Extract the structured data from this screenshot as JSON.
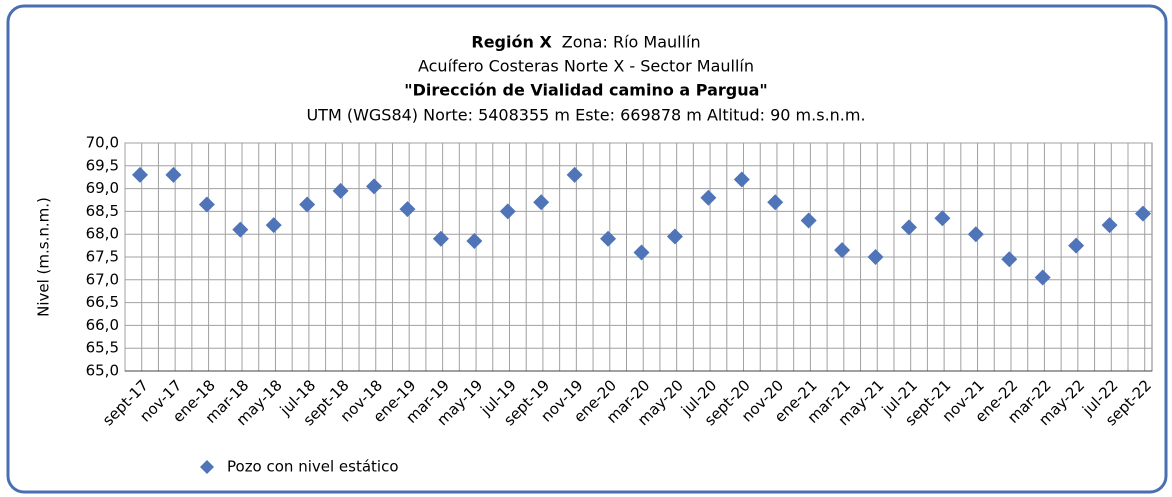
{
  "chart_data": {
    "type": "scatter",
    "title": "Región X",
    "title_detail": "Zona: Río Maullín",
    "subtitle": "Acuífero Costeras Norte X - Sector Maullín",
    "well_name": "\"Dirección de Vialidad camino a Pargua\"",
    "location": "UTM (WGS84) Norte: 5408355 m Este: 669878 m  Altitud: 90 m.s.n.m.",
    "y_label": "Nivel (m.s.n.m.)",
    "categories": [
      "sept-17",
      "nov-17",
      "ene-18",
      "mar-18",
      "may-18",
      "jul-18",
      "sept-18",
      "nov-18",
      "ene-19",
      "mar-19",
      "may-19",
      "jul-19",
      "sept-19",
      "nov-19",
      "ene-20",
      "mar-20",
      "may-20",
      "jul-20",
      "sept-20",
      "nov-20",
      "ene-21",
      "mar-21",
      "may-21",
      "jul-21",
      "sept-21",
      "nov-21",
      "ene-22",
      "mar-22",
      "may-22",
      "jul-22",
      "sept-22"
    ],
    "series": [
      {
        "name": "Pozo con nivel estático",
        "color": "#4f74b8",
        "values": [
          69.3,
          69.3,
          68.65,
          68.1,
          68.2,
          68.65,
          68.95,
          69.05,
          68.55,
          67.9,
          67.85,
          68.5,
          68.7,
          69.3,
          67.9,
          67.6,
          67.95,
          68.8,
          69.2,
          68.7,
          68.3,
          67.65,
          67.5,
          68.15,
          68.35,
          68.0,
          67.45,
          67.05,
          67.75,
          68.2,
          68.45
        ]
      }
    ],
    "ylim": [
      65,
      70
    ],
    "yticks": [
      {
        "value": 65,
        "label": "65,0"
      },
      {
        "value": 65.5,
        "label": "65,5"
      },
      {
        "value": 66,
        "label": "66,0"
      },
      {
        "value": 66.5,
        "label": "66,5"
      },
      {
        "value": 67,
        "label": "67,0"
      },
      {
        "value": 67.5,
        "label": "67,5"
      },
      {
        "value": 68,
        "label": "68,0"
      },
      {
        "value": 68.5,
        "label": "68,5"
      },
      {
        "value": 69,
        "label": "69,0"
      },
      {
        "value": 69.5,
        "label": "69,5"
      },
      {
        "value": 70,
        "label": "70,0"
      }
    ],
    "grid": true,
    "legend": "bottom-left"
  }
}
